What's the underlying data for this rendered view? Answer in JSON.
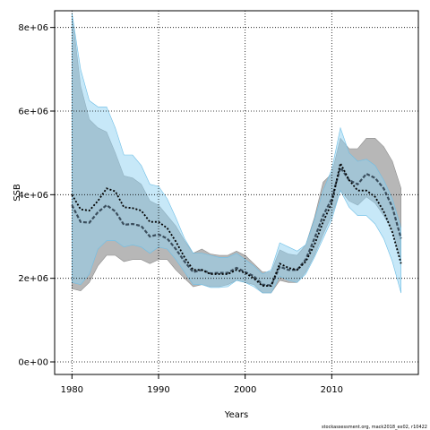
{
  "chart_data": {
    "type": "area",
    "xlabel": "Years",
    "ylabel": "SSB",
    "xlim": [
      1978,
      2020
    ],
    "ylim": [
      -300000,
      8400000
    ],
    "x_ticks": [
      1980,
      1990,
      2000,
      2010
    ],
    "x_tick_labels": [
      "1980",
      "1990",
      "2000",
      "2010"
    ],
    "y_ticks": [
      0,
      2000000,
      4000000,
      6000000,
      8000000
    ],
    "y_tick_labels": [
      "0e+00",
      "2e+06",
      "4e+06",
      "6e+06",
      "8e+06"
    ],
    "grid": true,
    "credit": "stockassessment.org, mack2018_ex02, r10422",
    "colors": {
      "grey_band": "#b3b3b3",
      "blue_band": "#8fd1f2",
      "grey_line": "#3a4d5c",
      "blue_line": "#000000",
      "grid": "#000000"
    },
    "x": [
      1980,
      1981,
      1982,
      1983,
      1984,
      1985,
      1986,
      1987,
      1988,
      1989,
      1990,
      1991,
      1992,
      1993,
      1994,
      1995,
      1996,
      1997,
      1998,
      1999,
      2000,
      2001,
      2002,
      2003,
      2004,
      2005,
      2006,
      2007,
      2008,
      2009,
      2010,
      2011,
      2012,
      2013,
      2014,
      2015,
      2016,
      2017,
      2018
    ],
    "series": [
      {
        "estimate": [
          3750000,
          3350000,
          3330000,
          3580000,
          3750000,
          3600000,
          3280000,
          3300000,
          3250000,
          3000000,
          3050000,
          2950000,
          2700000,
          2400000,
          2150000,
          2200000,
          2120000,
          2130000,
          2130000,
          2250000,
          2150000,
          2050000,
          1850000,
          1830000,
          2280000,
          2200000,
          2200000,
          2450000,
          2950000,
          3500000,
          3900000,
          4650000,
          4350000,
          4250000,
          4500000,
          4400000,
          4150000,
          3700000,
          2950000
        ],
        "lower": [
          1750000,
          1700000,
          1900000,
          2300000,
          2550000,
          2550000,
          2400000,
          2450000,
          2450000,
          2350000,
          2450000,
          2450000,
          2200000,
          2000000,
          1800000,
          1850000,
          1800000,
          1800000,
          1850000,
          1950000,
          1900000,
          1850000,
          1650000,
          1650000,
          1950000,
          1900000,
          1900000,
          2150000,
          2550000,
          3050000,
          3500000,
          4100000,
          3850000,
          3750000,
          3950000,
          3800000,
          3500000,
          3150000,
          2400000
        ],
        "upper": [
          8350000,
          6600000,
          5800000,
          5600000,
          5500000,
          5000000,
          4450000,
          4400000,
          4250000,
          3850000,
          3750000,
          3500000,
          3250000,
          2900000,
          2600000,
          2700000,
          2580000,
          2550000,
          2550000,
          2650000,
          2550000,
          2350000,
          2150000,
          2150000,
          2680000,
          2580000,
          2550000,
          2800000,
          3450000,
          4300000,
          4500000,
          5350000,
          5100000,
          5100000,
          5350000,
          5350000,
          5150000,
          4800000,
          4150000
        ]
      },
      {
        "estimate": [
          4000000,
          3650000,
          3620000,
          3850000,
          4150000,
          4080000,
          3700000,
          3680000,
          3620000,
          3350000,
          3350000,
          3200000,
          2880000,
          2500000,
          2200000,
          2200000,
          2100000,
          2100000,
          2100000,
          2200000,
          2130000,
          2000000,
          1820000,
          1820000,
          2350000,
          2250000,
          2200000,
          2400000,
          2800000,
          3350000,
          3800000,
          4750000,
          4350000,
          4100000,
          4100000,
          3950000,
          3600000,
          3100000,
          2350000
        ],
        "lower": [
          1900000,
          1850000,
          2100000,
          2700000,
          2900000,
          2900000,
          2750000,
          2800000,
          2750000,
          2600000,
          2750000,
          2700000,
          2450000,
          2150000,
          1850000,
          1850000,
          1780000,
          1780000,
          1800000,
          1950000,
          1900000,
          1800000,
          1650000,
          1650000,
          2050000,
          1950000,
          1900000,
          2100000,
          2500000,
          2950000,
          3400000,
          4100000,
          3700000,
          3500000,
          3500000,
          3300000,
          2950000,
          2400000,
          1650000
        ],
        "upper": [
          8350000,
          7000000,
          6250000,
          6100000,
          6100000,
          5600000,
          4950000,
          4950000,
          4700000,
          4250000,
          4200000,
          3900000,
          3450000,
          2950000,
          2600000,
          2600000,
          2550000,
          2500000,
          2500000,
          2600000,
          2450000,
          2300000,
          2100000,
          2200000,
          2850000,
          2750000,
          2650000,
          2800000,
          3400000,
          4100000,
          4600000,
          5600000,
          5000000,
          4800000,
          4850000,
          4700000,
          4350000,
          3900000,
          3200000
        ]
      }
    ]
  }
}
